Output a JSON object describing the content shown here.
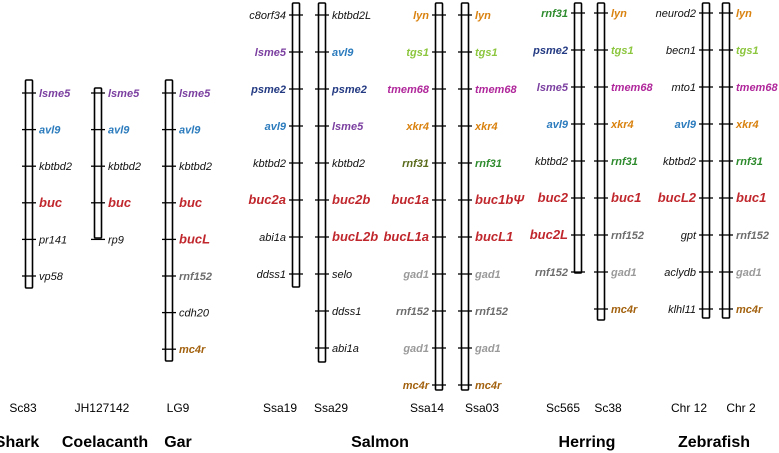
{
  "figure": "Gene synteny diagram across vertebrate chromosomes",
  "colors": {
    "purple": "#7b3fa0",
    "blue": "#2b7bbd",
    "red": "#c0272d",
    "black": "#111111",
    "orange": "#d9820f",
    "lightgreen": "#8cc63e",
    "magenta": "#b0279b",
    "darkgreen": "#2e8b2e",
    "olive": "#5a6b1c",
    "gray": "#9a9a9a",
    "darkgray": "#6d6d6d",
    "navy": "#233a82",
    "brown": "#a3620f"
  },
  "chromosomes": [
    {
      "id": "sc83",
      "label": "Sc83",
      "genes": [
        {
          "name": "lsme5",
          "color": "purple"
        },
        {
          "name": "avl9",
          "color": "blue"
        },
        {
          "name": "kbtbd2",
          "color": "black"
        },
        {
          "name": "buc",
          "color": "red"
        },
        {
          "name": "pr141",
          "color": "black"
        },
        {
          "name": "vp58",
          "color": "black"
        }
      ]
    },
    {
      "id": "jh127142",
      "label": "JH127142",
      "genes": [
        {
          "name": "lsme5",
          "color": "purple"
        },
        {
          "name": "avl9",
          "color": "blue"
        },
        {
          "name": "kbtbd2",
          "color": "black"
        },
        {
          "name": "buc",
          "color": "red"
        },
        {
          "name": "rp9",
          "color": "black"
        }
      ]
    },
    {
      "id": "lg9",
      "label": "LG9",
      "genes": [
        {
          "name": "lsme5",
          "color": "purple"
        },
        {
          "name": "avl9",
          "color": "blue"
        },
        {
          "name": "kbtbd2",
          "color": "black"
        },
        {
          "name": "buc",
          "color": "red"
        },
        {
          "name": "bucL",
          "color": "red"
        },
        {
          "name": "rnf152",
          "color": "darkgray"
        },
        {
          "name": "cdh20",
          "color": "black"
        },
        {
          "name": "mc4r",
          "color": "brown"
        }
      ]
    },
    {
      "id": "ssa19",
      "label": "Ssa19",
      "genes": [
        {
          "name": "c8orf34",
          "color": "black"
        },
        {
          "name": "lsme5",
          "color": "purple"
        },
        {
          "name": "psme2",
          "color": "navy"
        },
        {
          "name": "avl9",
          "color": "blue"
        },
        {
          "name": "kbtbd2",
          "color": "black"
        },
        {
          "name": "buc2a",
          "color": "red"
        },
        {
          "name": "abi1a",
          "color": "black"
        },
        {
          "name": "ddss1",
          "color": "black"
        }
      ]
    },
    {
      "id": "ssa29",
      "label": "Ssa29",
      "genes": [
        {
          "name": "kbtbd2L",
          "color": "black"
        },
        {
          "name": "avl9",
          "color": "blue"
        },
        {
          "name": "psme2",
          "color": "navy"
        },
        {
          "name": "lsme5",
          "color": "purple"
        },
        {
          "name": "kbtbd2",
          "color": "black"
        },
        {
          "name": "buc2b",
          "color": "red"
        },
        {
          "name": "bucL2b",
          "color": "red"
        },
        {
          "name": "selo",
          "color": "black"
        },
        {
          "name": "ddss1",
          "color": "black"
        },
        {
          "name": "abi1a",
          "color": "black"
        }
      ]
    },
    {
      "id": "ssa14",
      "label": "Ssa14",
      "genes": [
        {
          "name": "lyn",
          "color": "orange"
        },
        {
          "name": "tgs1",
          "color": "lightgreen"
        },
        {
          "name": "tmem68",
          "color": "magenta"
        },
        {
          "name": "xkr4",
          "color": "orange"
        },
        {
          "name": "rnf31",
          "color": "olive"
        },
        {
          "name": "buc1a",
          "color": "red"
        },
        {
          "name": "bucL1a",
          "color": "red"
        },
        {
          "name": "gad1",
          "color": "gray"
        },
        {
          "name": "rnf152",
          "color": "darkgray"
        },
        {
          "name": "gad1",
          "color": "gray"
        },
        {
          "name": "mc4r",
          "color": "brown"
        }
      ]
    },
    {
      "id": "ssa03",
      "label": "Ssa03",
      "genes": [
        {
          "name": "lyn",
          "color": "orange"
        },
        {
          "name": "tgs1",
          "color": "lightgreen"
        },
        {
          "name": "tmem68",
          "color": "magenta"
        },
        {
          "name": "xkr4",
          "color": "orange"
        },
        {
          "name": "rnf31",
          "color": "darkgreen"
        },
        {
          "name": "buc1bΨ",
          "color": "red"
        },
        {
          "name": "bucL1",
          "color": "red"
        },
        {
          "name": "gad1",
          "color": "gray"
        },
        {
          "name": "rnf152",
          "color": "darkgray"
        },
        {
          "name": "gad1",
          "color": "gray"
        },
        {
          "name": "mc4r",
          "color": "brown"
        }
      ]
    },
    {
      "id": "sc565",
      "label": "Sc565",
      "genes": [
        {
          "name": "rnf31",
          "color": "darkgreen"
        },
        {
          "name": "psme2",
          "color": "navy"
        },
        {
          "name": "lsme5",
          "color": "purple"
        },
        {
          "name": "avl9",
          "color": "blue"
        },
        {
          "name": "kbtbd2",
          "color": "black"
        },
        {
          "name": "buc2",
          "color": "red"
        },
        {
          "name": "buc2L",
          "color": "red"
        },
        {
          "name": "rnf152",
          "color": "darkgray"
        }
      ]
    },
    {
      "id": "sc38",
      "label": "Sc38",
      "genes": [
        {
          "name": "lyn",
          "color": "orange"
        },
        {
          "name": "tgs1",
          "color": "lightgreen"
        },
        {
          "name": "tmem68",
          "color": "magenta"
        },
        {
          "name": "xkr4",
          "color": "orange"
        },
        {
          "name": "rnf31",
          "color": "darkgreen"
        },
        {
          "name": "buc1",
          "color": "red"
        },
        {
          "name": "rnf152",
          "color": "darkgray"
        },
        {
          "name": "gad1",
          "color": "gray"
        },
        {
          "name": "mc4r",
          "color": "brown"
        }
      ]
    },
    {
      "id": "chr12",
      "label": "Chr 12",
      "genes": [
        {
          "name": "neurod2",
          "color": "black"
        },
        {
          "name": "becn1",
          "color": "black"
        },
        {
          "name": "mto1",
          "color": "black"
        },
        {
          "name": "avl9",
          "color": "blue"
        },
        {
          "name": "kbtbd2",
          "color": "black"
        },
        {
          "name": "bucL2",
          "color": "red"
        },
        {
          "name": "gpt",
          "color": "black"
        },
        {
          "name": "aclydb",
          "color": "black"
        },
        {
          "name": "klhl11",
          "color": "black"
        }
      ]
    },
    {
      "id": "chr2",
      "label": "Chr 2",
      "genes": [
        {
          "name": "lyn",
          "color": "orange"
        },
        {
          "name": "tgs1",
          "color": "lightgreen"
        },
        {
          "name": "tmem68",
          "color": "magenta"
        },
        {
          "name": "xkr4",
          "color": "orange"
        },
        {
          "name": "rnf31",
          "color": "darkgreen"
        },
        {
          "name": "buc1",
          "color": "red"
        },
        {
          "name": "rnf152",
          "color": "darkgray"
        },
        {
          "name": "gad1",
          "color": "gray"
        },
        {
          "name": "mc4r",
          "color": "brown"
        }
      ]
    }
  ],
  "species": [
    {
      "id": "shark",
      "label": "Shark"
    },
    {
      "id": "coelacanth",
      "label": "Coelacanth"
    },
    {
      "id": "gar",
      "label": "Gar"
    },
    {
      "id": "salmon",
      "label": "Salmon"
    },
    {
      "id": "herring",
      "label": "Herring"
    },
    {
      "id": "zebrafish",
      "label": "Zebrafish"
    }
  ]
}
